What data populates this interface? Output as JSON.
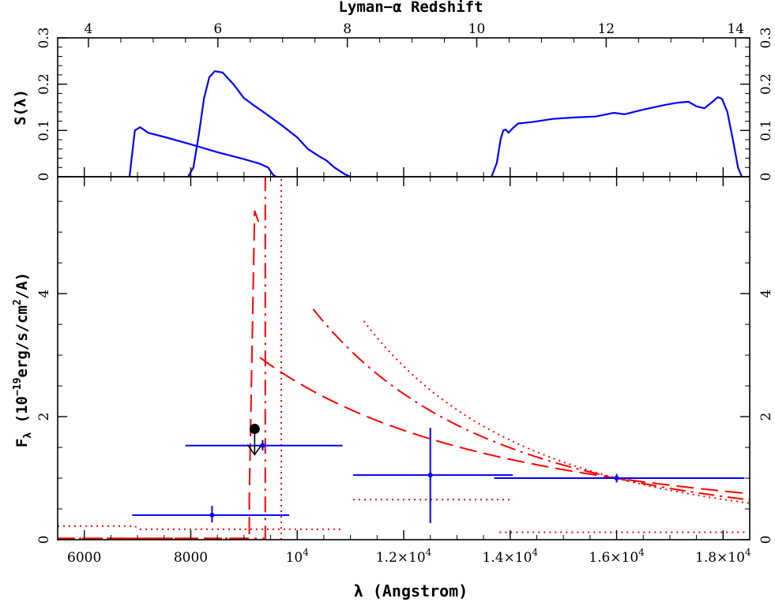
{
  "chart_data": [
    {
      "type": "line",
      "ylabel": "S(λ)",
      "top_xlabel": "Lyman−α Redshift",
      "xlim": [
        5500,
        18500
      ],
      "ylim": [
        0,
        0.3
      ],
      "yticks": [
        0,
        0.1,
        0.2,
        0.3
      ],
      "ytick_labels": [
        "0",
        "0.1",
        "0.2",
        "0.3"
      ],
      "top_xticks_redshift": [
        4,
        6,
        8,
        10,
        12,
        14
      ],
      "lyman_alpha_rest": 1215.67,
      "series": [
        {
          "color": "#0000ff",
          "points": [
            [
              6850,
              0
            ],
            [
              6900,
              0.05
            ],
            [
              6950,
              0.1
            ],
            [
              7050,
              0.107
            ],
            [
              7200,
              0.095
            ],
            [
              7500,
              0.086
            ],
            [
              8000,
              0.07
            ],
            [
              8500,
              0.053
            ],
            [
              9000,
              0.038
            ],
            [
              9300,
              0.028
            ],
            [
              9450,
              0.02
            ],
            [
              9500,
              0.012
            ],
            [
              9550,
              0.004
            ],
            [
              9600,
              0
            ]
          ]
        },
        {
          "color": "#0000ff",
          "points": [
            [
              7950,
              0
            ],
            [
              8050,
              0.02
            ],
            [
              8150,
              0.09
            ],
            [
              8250,
              0.17
            ],
            [
              8350,
              0.215
            ],
            [
              8450,
              0.228
            ],
            [
              8600,
              0.225
            ],
            [
              8800,
              0.2
            ],
            [
              9000,
              0.17
            ],
            [
              9200,
              0.153
            ],
            [
              9400,
              0.137
            ],
            [
              9700,
              0.112
            ],
            [
              10000,
              0.085
            ],
            [
              10200,
              0.06
            ],
            [
              10400,
              0.045
            ],
            [
              10550,
              0.035
            ],
            [
              10700,
              0.02
            ],
            [
              10900,
              0.005
            ],
            [
              11000,
              0
            ]
          ]
        },
        {
          "color": "#0000ff",
          "points": [
            [
              13650,
              0
            ],
            [
              13750,
              0.03
            ],
            [
              13820,
              0.08
            ],
            [
              13870,
              0.1
            ],
            [
              13920,
              0.102
            ],
            [
              13970,
              0.095
            ],
            [
              14050,
              0.105
            ],
            [
              14150,
              0.115
            ],
            [
              14400,
              0.118
            ],
            [
              14800,
              0.125
            ],
            [
              15200,
              0.128
            ],
            [
              15600,
              0.13
            ],
            [
              15950,
              0.138
            ],
            [
              16150,
              0.135
            ],
            [
              16500,
              0.145
            ],
            [
              16900,
              0.155
            ],
            [
              17150,
              0.16
            ],
            [
              17350,
              0.162
            ],
            [
              17500,
              0.152
            ],
            [
              17650,
              0.148
            ],
            [
              17800,
              0.162
            ],
            [
              17900,
              0.172
            ],
            [
              17980,
              0.168
            ],
            [
              18080,
              0.14
            ],
            [
              18200,
              0.07
            ],
            [
              18280,
              0.02
            ],
            [
              18350,
              0
            ]
          ]
        }
      ]
    },
    {
      "type": "line",
      "xlabel": "λ (Angstrom)",
      "ylabel": "Fλ (10⁻¹⁹erg/s/cm²/A)",
      "xlim": [
        5500,
        18500
      ],
      "ylim": [
        0,
        5.9
      ],
      "xticks": [
        6000,
        8000,
        10000,
        12000,
        14000,
        16000,
        18000
      ],
      "xtick_labels": [
        {
          "main": "6000"
        },
        {
          "main": "8000"
        },
        {
          "main": "10",
          "sup": "4"
        },
        {
          "main": "1.2×10",
          "sup": "4"
        },
        {
          "main": "1.4×10",
          "sup": "4"
        },
        {
          "main": "1.6×10",
          "sup": "4"
        },
        {
          "main": "1.8×10",
          "sup": "4"
        }
      ],
      "yticks": [
        0,
        2,
        4
      ],
      "ytick_labels": [
        "0",
        "2",
        "4"
      ],
      "errorbars": [
        {
          "x": 8400,
          "y": 0.4,
          "xerr": [
            6900,
            9850
          ],
          "yerr": [
            0.28,
            0.55
          ]
        },
        {
          "x": 9350,
          "y": 1.53,
          "xerr": [
            7900,
            10850
          ],
          "yerr": [
            1.45,
            1.62
          ]
        },
        {
          "x": 12500,
          "y": 1.05,
          "xerr": [
            11050,
            14050
          ],
          "yerr": [
            0.27,
            1.82
          ]
        },
        {
          "x": 16000,
          "y": 1.0,
          "xerr": [
            13700,
            18400
          ],
          "yerr": [
            0.93,
            1.07
          ]
        }
      ],
      "upper_limit": {
        "x": 9200,
        "y": 1.8,
        "arrow_to": 1.38
      },
      "models": [
        {
          "style": "dashed",
          "color": "#ff0000",
          "cutoff": [
            [
              5500,
              0.02
            ],
            [
              9100,
              0.02
            ],
            [
              9100,
              0.7
            ],
            [
              9200,
              5.35
            ],
            [
              9300,
              5.1
            ]
          ],
          "curve": {
            "x0": 9300,
            "x1": 18500,
            "norm_x": 16000,
            "norm_y": 1.0,
            "power": 2.0
          }
        },
        {
          "style": "dashdot",
          "color": "#ff0000",
          "cutoff": [
            [
              5500,
              0.02
            ],
            [
              9400,
              0.02
            ],
            [
              9400,
              6.0
            ]
          ],
          "curve": {
            "x0": 10300,
            "x1": 18500,
            "norm_x": 16000,
            "norm_y": 1.0,
            "power": 3.0
          }
        },
        {
          "style": "dotted",
          "color": "#ff0000",
          "cutoff": [
            [
              9700,
              0
            ],
            [
              9700,
              6.0
            ]
          ],
          "curve": {
            "x0": 11250,
            "x1": 18500,
            "norm_x": 16000,
            "norm_y": 1.0,
            "power": 3.6
          }
        }
      ],
      "dotted_segments": [
        {
          "color": "#ff0000",
          "points": [
            [
              5500,
              0.22
            ],
            [
              6950,
              0.22
            ],
            [
              7050,
              0.17
            ],
            [
              10850,
              0.17
            ]
          ]
        },
        {
          "color": "#ff0000",
          "points": [
            [
              11050,
              0.65
            ],
            [
              14000,
              0.65
            ]
          ]
        },
        {
          "color": "#ff0000",
          "points": [
            [
              13800,
              0.12
            ],
            [
              18450,
              0.12
            ]
          ]
        }
      ]
    }
  ]
}
